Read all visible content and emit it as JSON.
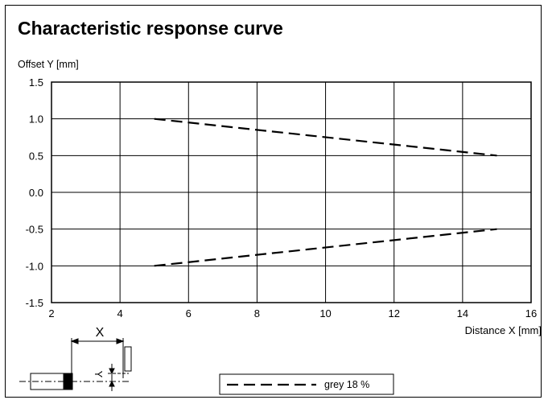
{
  "page": {
    "title": "Characteristic response curve"
  },
  "chart_data": {
    "type": "line",
    "title": "Characteristic response curve",
    "xlabel": "Distance X [mm]",
    "ylabel": "Offset Y [mm]",
    "xlim": [
      2,
      16
    ],
    "ylim": [
      -1.5,
      1.5
    ],
    "x_ticks": [
      2,
      4,
      6,
      8,
      10,
      12,
      14,
      16
    ],
    "y_ticks": [
      1.5,
      1.0,
      0.5,
      0.0,
      -0.5,
      -1.0,
      -1.5
    ],
    "y_tick_labels": [
      "1.5",
      "1.0",
      "0.5",
      "0.0",
      "-0.5",
      "-1.0",
      "-1.5"
    ],
    "grid": true,
    "legend_position": "bottom-center",
    "series": [
      {
        "name": "grey 18 %",
        "style": "dashed",
        "color": "#000000",
        "segments": [
          {
            "x": [
              5,
              15
            ],
            "y": [
              1.0,
              0.5
            ]
          },
          {
            "x": [
              5,
              15
            ],
            "y": [
              -1.0,
              -0.5
            ]
          }
        ]
      }
    ]
  },
  "diagram": {
    "x_label": "X",
    "y_label": "Y"
  }
}
